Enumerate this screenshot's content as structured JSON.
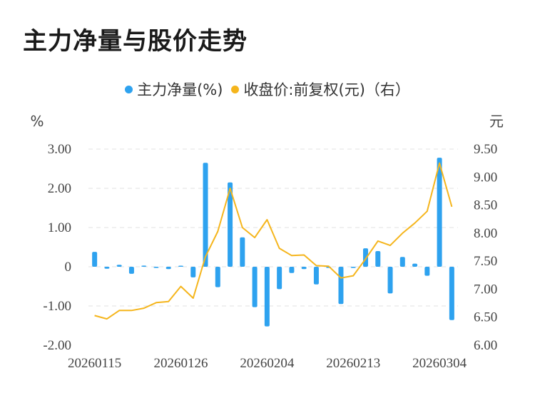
{
  "page": {
    "title": "主力净量与股价走势"
  },
  "legend": {
    "items": [
      {
        "label": "主力净量(%)",
        "color": "#2ea2ef"
      },
      {
        "label": "收盘价:前复权(元)（右）",
        "color": "#f5b51c"
      }
    ]
  },
  "chart_data": {
    "type": "bar+line",
    "x_tick_labels": [
      "20260115",
      "20260126",
      "20260204",
      "20260213",
      "20260304"
    ],
    "y_left": {
      "unit": "%",
      "ticks": [
        "3.00",
        "2.00",
        "1.00",
        "0",
        "-1.00",
        "-2.00"
      ],
      "range": [
        -2,
        3
      ]
    },
    "y_right": {
      "unit": "元",
      "ticks": [
        "9.50",
        "9.00",
        "8.50",
        "8.00",
        "7.50",
        "7.00",
        "6.50",
        "6.00"
      ],
      "range": [
        6,
        9.5
      ]
    },
    "grid": "horizontal dashed",
    "series": [
      {
        "name": "主力净量(%)",
        "type": "bar",
        "axis": "left",
        "color": "#2ea2ef",
        "values": [
          0.38,
          -0.05,
          0.05,
          -0.18,
          0.03,
          -0.03,
          -0.06,
          0.0,
          -0.27,
          2.65,
          -0.52,
          2.15,
          0.75,
          -1.03,
          -1.52,
          -0.57,
          -0.16,
          -0.06,
          -0.45,
          -0.03,
          -0.95,
          -0.03,
          0.47,
          0.4,
          -0.68,
          0.25,
          0.08,
          -0.23,
          2.78,
          -1.36
        ]
      },
      {
        "name": "收盘价:前复权(元)（右）",
        "type": "line",
        "axis": "right",
        "color": "#f5b51c",
        "values": [
          6.53,
          6.47,
          6.62,
          6.62,
          6.66,
          6.76,
          6.78,
          7.05,
          6.84,
          7.58,
          8.03,
          8.8,
          8.1,
          7.92,
          8.24,
          7.73,
          7.6,
          7.61,
          7.42,
          7.41,
          7.2,
          7.24,
          7.54,
          7.86,
          7.78,
          8.0,
          8.18,
          8.39,
          9.25,
          8.47
        ]
      }
    ]
  }
}
